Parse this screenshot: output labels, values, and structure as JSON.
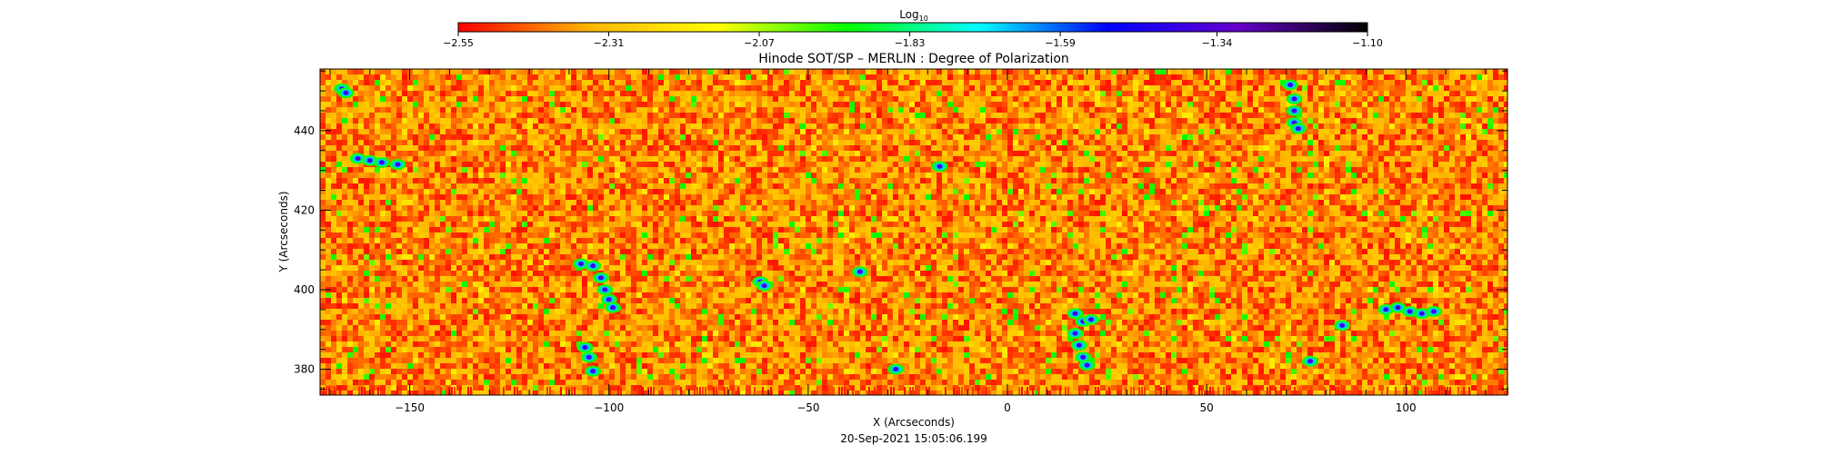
{
  "chart_data": {
    "type": "heatmap",
    "title": "Hinode SOT/SP – MERLIN : Degree of Polarization",
    "xlabel": "X (Arcseconds)",
    "ylabel": "Y (Arcseconds)",
    "timestamp": "20-Sep-2021 15:05:06.199",
    "colorbar": {
      "label_base": "Log",
      "label_sub": "10",
      "range": [
        -2.55,
        -1.1
      ],
      "ticks": [
        -2.55,
        -2.31,
        -2.07,
        -1.83,
        -1.59,
        -1.34,
        -1.1
      ],
      "tick_labels": [
        "−2.55",
        "−2.31",
        "−2.07",
        "−1.83",
        "−1.59",
        "−1.34",
        "−1.10"
      ],
      "colors": [
        "#ff0000",
        "#ffb400",
        "#ffff00",
        "#00ff00",
        "#00ffff",
        "#0000ff",
        "#6600cc",
        "#000000"
      ]
    },
    "xlim": [
      -172.5,
      125.5
    ],
    "ylim": [
      373.5,
      455.5
    ],
    "xticks": [
      -150,
      -100,
      -50,
      0,
      50,
      100
    ],
    "xtick_labels": [
      "−150",
      "−100",
      "−50",
      "0",
      "50",
      "100"
    ],
    "yticks": [
      380,
      400,
      420,
      440
    ],
    "ytick_labels": [
      "380",
      "400",
      "420",
      "440"
    ],
    "background_level": -2.4,
    "strong_features": [
      {
        "x": -167,
        "y": 450.5
      },
      {
        "x": -166,
        "y": 449.5
      },
      {
        "x": -163,
        "y": 433
      },
      {
        "x": -160,
        "y": 432.5
      },
      {
        "x": -157,
        "y": 432
      },
      {
        "x": -153,
        "y": 431.5
      },
      {
        "x": -107,
        "y": 406.5
      },
      {
        "x": -104,
        "y": 406
      },
      {
        "x": -102,
        "y": 403
      },
      {
        "x": -101,
        "y": 400
      },
      {
        "x": -100,
        "y": 397.5
      },
      {
        "x": -99,
        "y": 395.5
      },
      {
        "x": -106,
        "y": 385.5
      },
      {
        "x": -105,
        "y": 383
      },
      {
        "x": -104,
        "y": 379.5
      },
      {
        "x": -62,
        "y": 402
      },
      {
        "x": -61,
        "y": 401
      },
      {
        "x": -37,
        "y": 404.5
      },
      {
        "x": -17,
        "y": 431
      },
      {
        "x": 17,
        "y": 394
      },
      {
        "x": 19,
        "y": 392
      },
      {
        "x": 21,
        "y": 392.5
      },
      {
        "x": 17,
        "y": 389
      },
      {
        "x": 18,
        "y": 386
      },
      {
        "x": 19,
        "y": 383
      },
      {
        "x": 20,
        "y": 381
      },
      {
        "x": 71,
        "y": 451.5
      },
      {
        "x": 72,
        "y": 448
      },
      {
        "x": 72,
        "y": 445
      },
      {
        "x": 72,
        "y": 442
      },
      {
        "x": 73,
        "y": 440.5
      },
      {
        "x": 95,
        "y": 395
      },
      {
        "x": 98,
        "y": 395.5
      },
      {
        "x": 101,
        "y": 394.5
      },
      {
        "x": 104,
        "y": 394
      },
      {
        "x": 107,
        "y": 394.5
      },
      {
        "x": 84,
        "y": 391
      },
      {
        "x": 76,
        "y": 382
      },
      {
        "x": -28,
        "y": 380
      }
    ]
  }
}
